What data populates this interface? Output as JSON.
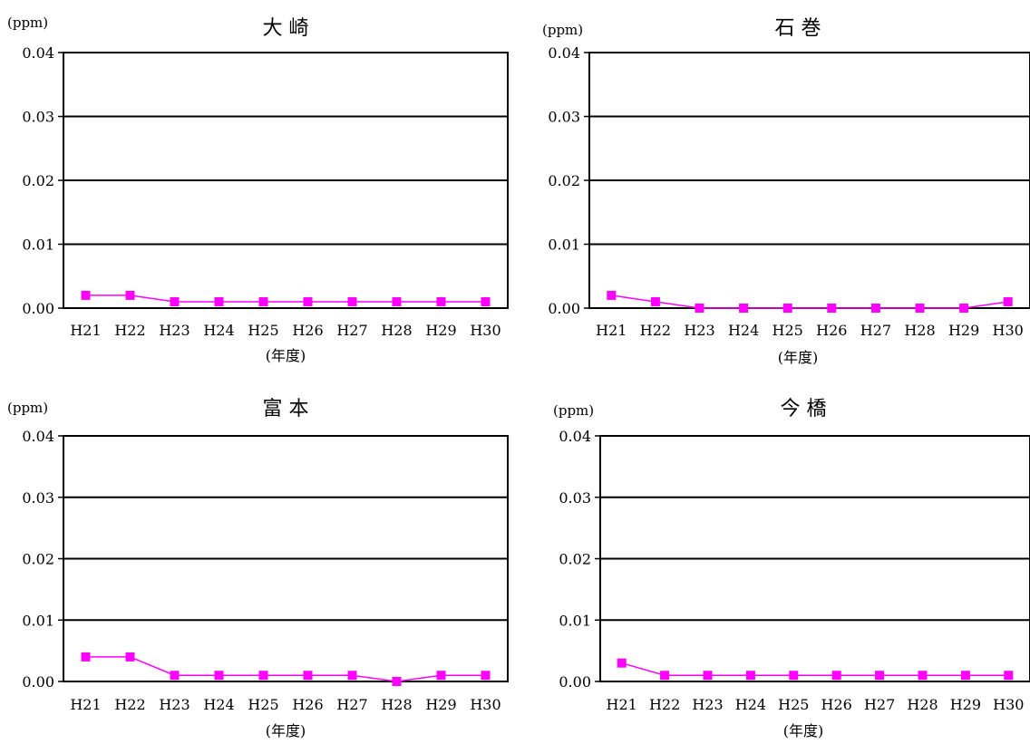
{
  "chart_data": [
    {
      "type": "line",
      "title": "大 崎",
      "unit": "(ppm)",
      "xlabel": "(年度)",
      "ylabel": "",
      "categories": [
        "H21",
        "H22",
        "H23",
        "H24",
        "H25",
        "H26",
        "H27",
        "H28",
        "H29",
        "H30"
      ],
      "ylim": [
        0,
        0.04
      ],
      "yticks": [
        "0.00",
        "0.01",
        "0.02",
        "0.03",
        "0.04"
      ],
      "grid": true,
      "series": [
        {
          "values": [
            0.002,
            0.002,
            0.001,
            0.001,
            0.001,
            0.001,
            0.001,
            0.001,
            0.001,
            0.001
          ],
          "color": "#ff00ff"
        }
      ]
    },
    {
      "type": "line",
      "title": "石 巻",
      "unit": "(ppm)",
      "xlabel": "(年度)",
      "ylabel": "",
      "categories": [
        "H21",
        "H22",
        "H23",
        "H24",
        "H25",
        "H26",
        "H27",
        "H28",
        "H29",
        "H30"
      ],
      "ylim": [
        0,
        0.04
      ],
      "yticks": [
        "0.00",
        "0.01",
        "0.02",
        "0.03",
        "0.04"
      ],
      "grid": true,
      "series": [
        {
          "values": [
            0.002,
            0.001,
            0.0,
            0.0,
            0.0,
            0.0,
            0.0,
            0.0,
            0.0,
            0.001
          ],
          "color": "#ff00ff"
        }
      ]
    },
    {
      "type": "line",
      "title": "富 本",
      "unit": "(ppm)",
      "xlabel": "(年度)",
      "ylabel": "",
      "categories": [
        "H21",
        "H22",
        "H23",
        "H24",
        "H25",
        "H26",
        "H27",
        "H28",
        "H29",
        "H30"
      ],
      "ylim": [
        0,
        0.04
      ],
      "yticks": [
        "0.00",
        "0.01",
        "0.02",
        "0.03",
        "0.04"
      ],
      "grid": true,
      "series": [
        {
          "values": [
            0.004,
            0.004,
            0.001,
            0.001,
            0.001,
            0.001,
            0.001,
            0.0,
            0.001,
            0.001
          ],
          "color": "#ff00ff"
        }
      ]
    },
    {
      "type": "line",
      "title": "今 橋",
      "unit": "(ppm)",
      "xlabel": "(年度)",
      "ylabel": "",
      "categories": [
        "H21",
        "H22",
        "H23",
        "H24",
        "H25",
        "H26",
        "H27",
        "H28",
        "H29",
        "H30"
      ],
      "ylim": [
        0,
        0.04
      ],
      "yticks": [
        "0.00",
        "0.01",
        "0.02",
        "0.03",
        "0.04"
      ],
      "grid": true,
      "series": [
        {
          "values": [
            0.003,
            0.001,
            0.001,
            0.001,
            0.001,
            0.001,
            0.001,
            0.001,
            0.001,
            0.001
          ],
          "color": "#ff00ff"
        }
      ]
    }
  ]
}
